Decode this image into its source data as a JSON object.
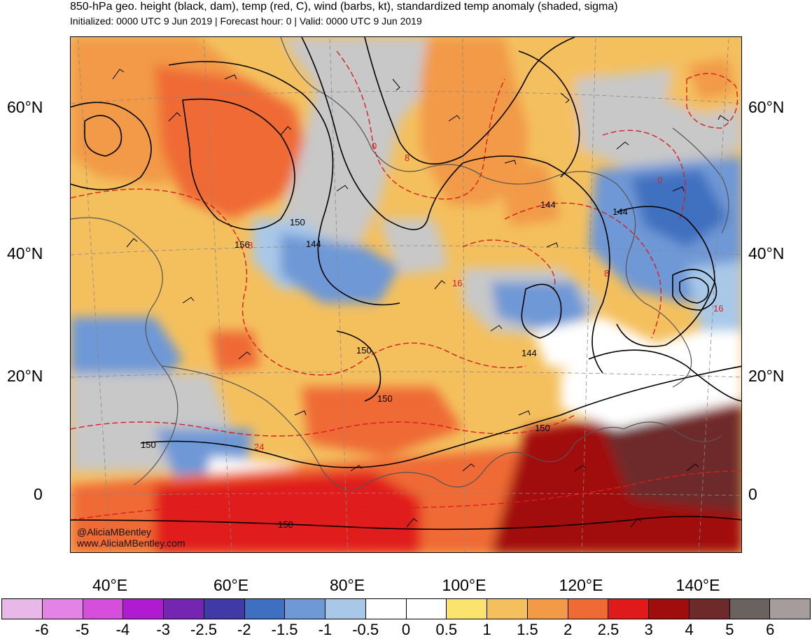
{
  "title": "850-hPa geo. height (black, dam), temp (red, C), wind (barbs, kt), standardized temp anomaly (shaded, sigma)",
  "subtitle": "Initialized: 0000 UTC 9 Jun 2019 | Forecast hour: 0 | Valid: 0000 UTC 9 Jun 2019",
  "watermark": {
    "handle": "@AliciaMBentley",
    "site": "www.AliciaMBentley.com"
  },
  "latitude_labels": [
    "60°N",
    "40°N",
    "20°N",
    "0"
  ],
  "longitude_labels": [
    "40°E",
    "60°E",
    "80°E",
    "100°E",
    "120°E",
    "140°E"
  ],
  "height_contour_labels": [
    "150",
    "156",
    "144",
    "144",
    "144",
    "150",
    "150",
    "150",
    "150",
    "144",
    "150"
  ],
  "temp_contour_labels": [
    "0",
    "8",
    "8",
    "16",
    "8",
    "0",
    "16",
    "24"
  ],
  "colorbar": {
    "labels": [
      "-6",
      "-5",
      "-4",
      "-3",
      "-2.5",
      "-2",
      "-1.5",
      "-1",
      "-0.5",
      "0",
      "0.5",
      "1",
      "1.5",
      "2",
      "2.5",
      "3",
      "4",
      "5",
      "6"
    ],
    "colors": [
      "#e8b8e8",
      "#e383e6",
      "#d64fdc",
      "#b01bd1",
      "#7426b3",
      "#3f3aa6",
      "#3f6fc0",
      "#6e98d6",
      "#a9c8e8",
      "#ffffff",
      "#ffffff",
      "#fbe46e",
      "#f4c05e",
      "#f29a46",
      "#ef6a35",
      "#e01a1a",
      "#a10d0d",
      "#6e2a2a",
      "#6a625e",
      "#a79c9c"
    ]
  },
  "legend_colors": {
    "height_contour": "#000000",
    "temp_contour": "#d81e1e",
    "land_outline": "#555555"
  }
}
